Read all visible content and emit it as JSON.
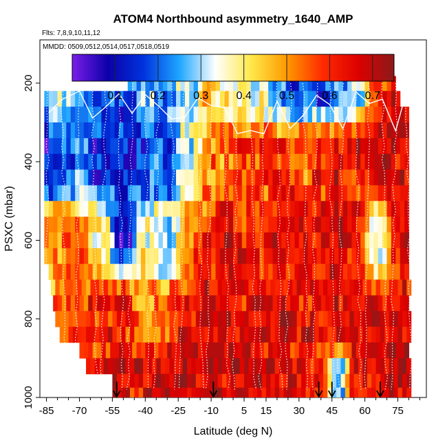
{
  "chart_data": {
    "type": "heatmap",
    "title": "ATOM4 Northbound asymmetry_1640_AMP",
    "flights_note": "Flts: 7,8,9,10,11,12",
    "mmdd_note": "MMDD: 0509,0512,0514,0517,0518,0519",
    "xlabel": "Latitude (deg N)",
    "ylabel": "PSXC (mbar)",
    "xlim": [
      -88,
      88
    ],
    "ylim": [
      1000,
      90
    ],
    "y_reversed": true,
    "x_ticks": [
      -85,
      -70,
      -55,
      -40,
      -25,
      -10,
      5,
      15,
      30,
      45,
      60,
      75
    ],
    "x_tick_labels": [
      "-85",
      "-70",
      "-55",
      "-40",
      "-25",
      "-10",
      "5",
      "15",
      "30",
      "45",
      "60",
      "75"
    ],
    "y_ticks": [
      200,
      400,
      600,
      800,
      1000
    ],
    "y_tick_labels": [
      "200",
      "400",
      "600",
      "800",
      "1000"
    ],
    "colorbar": {
      "range": [
        0.0,
        0.75
      ],
      "ticks": [
        0.1,
        0.2,
        0.3,
        0.4,
        0.5,
        0.6,
        0.7
      ],
      "tick_labels": [
        "0.1",
        "0.2",
        "0.3",
        "0.4",
        "0.5",
        "0.6",
        "0.7"
      ],
      "stops": [
        "#7b1de8",
        "#0b00a8",
        "#0033dd",
        "#1fa6ff",
        "#ffffff",
        "#ffe84a",
        "#ff9a00",
        "#ff2a00",
        "#dd0000",
        "#8b1a1a"
      ]
    },
    "pressure_levels": [
      200,
      240,
      280,
      320,
      360,
      400,
      440,
      480,
      520,
      560,
      600,
      640,
      680,
      720,
      760,
      800,
      840,
      880,
      920,
      960,
      990
    ],
    "level_lat_ranges": [
      [
        -48,
        74
      ],
      [
        -86,
        76
      ],
      [
        -86,
        80
      ],
      [
        -86,
        80
      ],
      [
        -86,
        80
      ],
      [
        -86,
        80
      ],
      [
        -86,
        80
      ],
      [
        -86,
        80
      ],
      [
        -86,
        80
      ],
      [
        -86,
        80
      ],
      [
        -86,
        80
      ],
      [
        -86,
        80
      ],
      [
        -84,
        80
      ],
      [
        -83,
        80
      ],
      [
        -82,
        80
      ],
      [
        -81,
        80
      ],
      [
        -79,
        80
      ],
      [
        -70,
        80
      ],
      [
        -67,
        80
      ],
      [
        -55,
        80
      ],
      [
        -55,
        80
      ]
    ],
    "profile_points": [
      {
        "lat": -84,
        "p": 200,
        "v": 0.28
      },
      {
        "lat": -84,
        "p": 400,
        "v": 0.12
      },
      {
        "lat": -84,
        "p": 600,
        "v": 0.55
      },
      {
        "lat": -84,
        "p": 800,
        "v": 0.5
      },
      {
        "lat": -72,
        "p": 200,
        "v": 0.3
      },
      {
        "lat": -72,
        "p": 400,
        "v": 0.22
      },
      {
        "lat": -72,
        "p": 600,
        "v": 0.55
      },
      {
        "lat": -72,
        "p": 800,
        "v": 0.58
      },
      {
        "lat": -60,
        "p": 200,
        "v": 0.2
      },
      {
        "lat": -60,
        "p": 400,
        "v": 0.12
      },
      {
        "lat": -60,
        "p": 600,
        "v": 0.4
      },
      {
        "lat": -60,
        "p": 800,
        "v": 0.62
      },
      {
        "lat": -60,
        "p": 950,
        "v": 0.62
      },
      {
        "lat": -50,
        "p": 200,
        "v": 0.18
      },
      {
        "lat": -50,
        "p": 400,
        "v": 0.1
      },
      {
        "lat": -50,
        "p": 600,
        "v": 0.12
      },
      {
        "lat": -50,
        "p": 800,
        "v": 0.64
      },
      {
        "lat": -50,
        "p": 950,
        "v": 0.66
      },
      {
        "lat": -40,
        "p": 200,
        "v": 0.26
      },
      {
        "lat": -40,
        "p": 400,
        "v": 0.18
      },
      {
        "lat": -40,
        "p": 600,
        "v": 0.4
      },
      {
        "lat": -40,
        "p": 800,
        "v": 0.52
      },
      {
        "lat": -40,
        "p": 950,
        "v": 0.66
      },
      {
        "lat": -30,
        "p": 200,
        "v": 0.22
      },
      {
        "lat": -30,
        "p": 400,
        "v": 0.14
      },
      {
        "lat": -30,
        "p": 600,
        "v": 0.3
      },
      {
        "lat": -30,
        "p": 800,
        "v": 0.56
      },
      {
        "lat": -30,
        "p": 950,
        "v": 0.68
      },
      {
        "lat": -20,
        "p": 200,
        "v": 0.3
      },
      {
        "lat": -20,
        "p": 400,
        "v": 0.35
      },
      {
        "lat": -20,
        "p": 600,
        "v": 0.55
      },
      {
        "lat": -20,
        "p": 800,
        "v": 0.64
      },
      {
        "lat": -20,
        "p": 950,
        "v": 0.68
      },
      {
        "lat": -10,
        "p": 200,
        "v": 0.45
      },
      {
        "lat": -10,
        "p": 400,
        "v": 0.52
      },
      {
        "lat": -10,
        "p": 600,
        "v": 0.62
      },
      {
        "lat": -10,
        "p": 800,
        "v": 0.66
      },
      {
        "lat": -10,
        "p": 950,
        "v": 0.68
      },
      {
        "lat": 0,
        "p": 200,
        "v": 0.36
      },
      {
        "lat": 0,
        "p": 400,
        "v": 0.56
      },
      {
        "lat": 0,
        "p": 600,
        "v": 0.64
      },
      {
        "lat": 0,
        "p": 800,
        "v": 0.66
      },
      {
        "lat": 0,
        "p": 950,
        "v": 0.68
      },
      {
        "lat": 10,
        "p": 200,
        "v": 0.34
      },
      {
        "lat": 10,
        "p": 400,
        "v": 0.58
      },
      {
        "lat": 10,
        "p": 600,
        "v": 0.6
      },
      {
        "lat": 10,
        "p": 800,
        "v": 0.64
      },
      {
        "lat": 10,
        "p": 950,
        "v": 0.68
      },
      {
        "lat": 20,
        "p": 200,
        "v": 0.2
      },
      {
        "lat": 20,
        "p": 400,
        "v": 0.6
      },
      {
        "lat": 20,
        "p": 600,
        "v": 0.64
      },
      {
        "lat": 20,
        "p": 800,
        "v": 0.66
      },
      {
        "lat": 20,
        "p": 950,
        "v": 0.68
      },
      {
        "lat": 30,
        "p": 200,
        "v": 0.18
      },
      {
        "lat": 30,
        "p": 400,
        "v": 0.55
      },
      {
        "lat": 30,
        "p": 600,
        "v": 0.64
      },
      {
        "lat": 30,
        "p": 800,
        "v": 0.64
      },
      {
        "lat": 30,
        "p": 950,
        "v": 0.66
      },
      {
        "lat": 40,
        "p": 200,
        "v": 0.16
      },
      {
        "lat": 40,
        "p": 400,
        "v": 0.62
      },
      {
        "lat": 40,
        "p": 600,
        "v": 0.66
      },
      {
        "lat": 40,
        "p": 800,
        "v": 0.66
      },
      {
        "lat": 40,
        "p": 950,
        "v": 0.6
      },
      {
        "lat": 48,
        "p": 200,
        "v": 0.22
      },
      {
        "lat": 48,
        "p": 400,
        "v": 0.64
      },
      {
        "lat": 48,
        "p": 600,
        "v": 0.66
      },
      {
        "lat": 48,
        "p": 800,
        "v": 0.66
      },
      {
        "lat": 48,
        "p": 950,
        "v": 0.3
      },
      {
        "lat": 56,
        "p": 200,
        "v": 0.26
      },
      {
        "lat": 56,
        "p": 400,
        "v": 0.64
      },
      {
        "lat": 56,
        "p": 600,
        "v": 0.6
      },
      {
        "lat": 56,
        "p": 800,
        "v": 0.66
      },
      {
        "lat": 56,
        "p": 950,
        "v": 0.64
      },
      {
        "lat": 66,
        "p": 200,
        "v": 0.6
      },
      {
        "lat": 66,
        "p": 400,
        "v": 0.66
      },
      {
        "lat": 66,
        "p": 600,
        "v": 0.35
      },
      {
        "lat": 66,
        "p": 800,
        "v": 0.66
      },
      {
        "lat": 66,
        "p": 950,
        "v": 0.66
      },
      {
        "lat": 76,
        "p": 200,
        "v": 0.64
      },
      {
        "lat": 76,
        "p": 400,
        "v": 0.66
      },
      {
        "lat": 76,
        "p": 600,
        "v": 0.66
      },
      {
        "lat": 76,
        "p": 800,
        "v": 0.66
      },
      {
        "lat": 76,
        "p": 950,
        "v": 0.66
      }
    ],
    "flight_track_latitudes": [
      -84,
      -78,
      -70,
      -64,
      -58,
      -52,
      -46,
      -40,
      -34,
      -28,
      -22,
      -16,
      -10,
      -4,
      2,
      8,
      14,
      20,
      26,
      32,
      38,
      44,
      50,
      56,
      62,
      68,
      74,
      79
    ],
    "arrow_latitudes": [
      -53,
      -9,
      39,
      45,
      67
    ]
  }
}
